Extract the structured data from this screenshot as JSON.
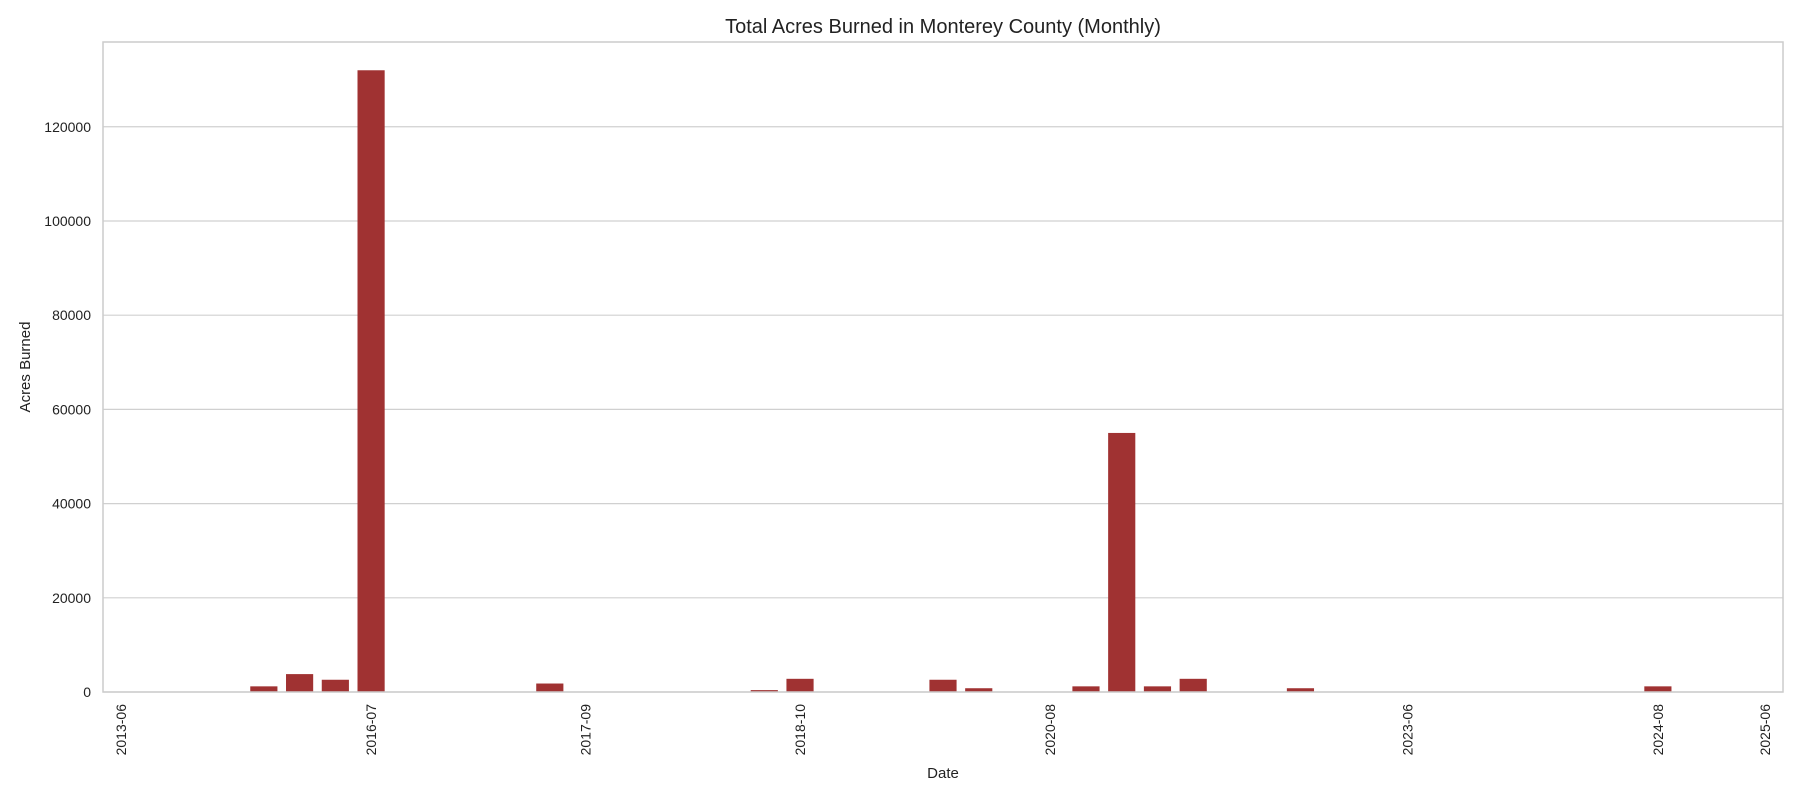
{
  "chart_data": {
    "type": "bar",
    "title": "Total Acres Burned in Monterey County (Monthly)",
    "xlabel": "Date",
    "ylabel": "Acres Burned",
    "ylim": [
      0,
      138000
    ],
    "yticks": [
      0,
      20000,
      40000,
      60000,
      80000,
      100000,
      120000
    ],
    "grid": "horizontal",
    "bar_color": "#a03232",
    "xtick_labels": [
      "2013-06",
      "2016-07",
      "2017-09",
      "2018-10",
      "2020-08",
      "2023-06",
      "2024-08",
      "2025-06"
    ],
    "categories": [
      "2013-06",
      "2013-07",
      "2013-08",
      "2014-05",
      "2015-06",
      "2016-05",
      "2016-06",
      "2016-07",
      "2016-08",
      "2017-05",
      "2017-06",
      "2017-07",
      "2017-08",
      "2017-09",
      "2017-10",
      "2018-06",
      "2018-07",
      "2018-08",
      "2018-09",
      "2018-10",
      "2019-06",
      "2019-07",
      "2019-08",
      "2019-10",
      "2020-06",
      "2020-07",
      "2020-08",
      "2020-09",
      "2020-10",
      "2021-06",
      "2021-07",
      "2021-08",
      "2022-06",
      "2022-07",
      "2022-08",
      "2022-09",
      "2023-06",
      "2023-07",
      "2023-08",
      "2023-09",
      "2023-10",
      "2024-06",
      "2024-07",
      "2024-08",
      "2024-09",
      "2024-10",
      "2025-06"
    ],
    "values": [
      0,
      0,
      0,
      0,
      1200,
      3800,
      2600,
      132000,
      0,
      0,
      0,
      0,
      1800,
      0,
      0,
      0,
      0,
      0,
      400,
      2800,
      0,
      0,
      0,
      2600,
      800,
      0,
      0,
      1200,
      55000,
      1200,
      2800,
      0,
      0,
      800,
      0,
      0,
      0,
      0,
      0,
      0,
      0,
      0,
      0,
      1200,
      0,
      0,
      0
    ]
  }
}
